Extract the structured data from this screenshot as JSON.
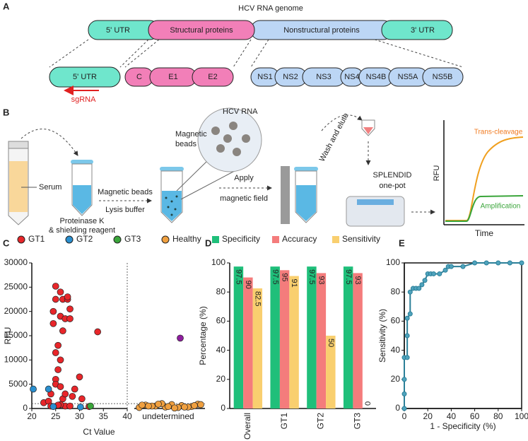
{
  "panel_labels": [
    "A",
    "B",
    "C",
    "D",
    "E"
  ],
  "genome": {
    "title": "HCV RNA genome",
    "top": [
      "5' UTR",
      "Structural proteins",
      "Nonstructural proteins",
      "3' UTR"
    ],
    "bottom": [
      "5' UTR",
      "C",
      "E1",
      "E2",
      "NS1",
      "NS2",
      "NS3",
      "NS4",
      "NS4B",
      "NS5A",
      "NS5B"
    ],
    "guide": "sgRNA"
  },
  "workflow": {
    "serum": "Serum",
    "proteinase": [
      "Proteinase K",
      "& shielding reagent"
    ],
    "beads_step": [
      "Magnetic beads",
      "Lysis buffer"
    ],
    "zoom": [
      "HCV RNA",
      "Magnetic",
      "beads"
    ],
    "apply": [
      "Apply",
      "magnetic field"
    ],
    "wash": "Wash and elute",
    "device": [
      "SPLENDID",
      "one-pot"
    ],
    "mini_chart": {
      "y_label": "RFU",
      "x_label": "Time",
      "curves": [
        "Trans-cleavage",
        "Amplification"
      ]
    }
  },
  "chart_data": [
    {
      "type": "scatter",
      "x_label": "Ct Value",
      "y_label": "RFU",
      "x_undetermined_label": "undetermined",
      "xlim": [
        20,
        40
      ],
      "xticks": [
        20,
        25,
        30,
        35,
        40
      ],
      "ylim": [
        0,
        30000
      ],
      "yticks": [
        0,
        5000,
        10000,
        15000,
        20000,
        25000,
        30000
      ],
      "hline": 1000,
      "series": [
        {
          "name": "GT1",
          "color": "#e8262a",
          "x": [
            22.5,
            23.5,
            24,
            24.5,
            24.5,
            25,
            25,
            25,
            25.5,
            25.5,
            25,
            25,
            26,
            26.5,
            26,
            26.5,
            26,
            26,
            26.5,
            27,
            27,
            27.5,
            27.5,
            28,
            28,
            27,
            26,
            24,
            28.5,
            29,
            30,
            30.5,
            32,
            33.8,
            25.5,
            28
          ],
          "values": [
            1200,
            1500,
            3000,
            17500,
            20000,
            25200,
            22500,
            11500,
            13000,
            8000,
            6000,
            5000,
            24000,
            22500,
            19000,
            16000,
            10000,
            4500,
            2000,
            3000,
            18500,
            22500,
            23000,
            20500,
            18500,
            500,
            800,
            500,
            2500,
            4000,
            6500,
            2000,
            400,
            15800,
            700,
            500
          ]
        },
        {
          "name": "GT2",
          "color": "#2a8fcf",
          "x": [
            20.3,
            23.5,
            24.5,
            30.2
          ],
          "values": [
            4000,
            4000,
            400,
            300
          ]
        },
        {
          "name": "GT3",
          "color": "#3aa53a",
          "x": [
            32.3
          ],
          "values": [
            500
          ]
        },
        {
          "name": "Healthy",
          "color": "#f0a040",
          "x": [
            null,
            null,
            null,
            null,
            null,
            null,
            null,
            null,
            null,
            null,
            null,
            null,
            null,
            null,
            null,
            null,
            null,
            null,
            null,
            null
          ],
          "values": [
            200,
            300,
            400,
            500,
            600,
            700,
            800,
            900,
            1000,
            300,
            500,
            200,
            700,
            400,
            600,
            900,
            300,
            500,
            100,
            800
          ]
        },
        {
          "color": "#8e1d9e",
          "x": [
            null
          ],
          "values": [
            14500
          ]
        }
      ]
    },
    {
      "type": "bar",
      "y_label": "Percentage (%)",
      "categories": [
        "Overall",
        "GT1",
        "GT2",
        "GT3"
      ],
      "ylim": [
        0,
        100
      ],
      "yticks": [
        0,
        20,
        40,
        60,
        80,
        100
      ],
      "series": [
        {
          "name": "Specificity",
          "color": "#1fbf7a",
          "values": [
            97.5,
            97.5,
            97.5,
            97.5
          ]
        },
        {
          "name": "Accuracy",
          "color": "#f47c7c",
          "values": [
            90,
            95,
            93,
            93
          ]
        },
        {
          "name": "Sensitivity",
          "color": "#f9cf6f",
          "values": [
            82.5,
            91,
            50,
            0
          ]
        }
      ]
    },
    {
      "type": "line",
      "x_label": "1 - Specificity (%)",
      "y_label": "Sensitivity (%)",
      "xlim": [
        0,
        100
      ],
      "xticks": [
        0,
        20,
        40,
        60,
        80,
        100
      ],
      "ylim": [
        0,
        100
      ],
      "yticks": [
        0,
        20,
        40,
        60,
        80,
        100
      ],
      "series": [
        {
          "color": "#2b7f98",
          "x": [
            0,
            0,
            0,
            0,
            2.5,
            2.5,
            2.5,
            5,
            5,
            7.5,
            10,
            12.5,
            15,
            17.5,
            20,
            22.5,
            25,
            30,
            35,
            37.5,
            40,
            50,
            60,
            70,
            80,
            90,
            100
          ],
          "values": [
            0,
            10,
            20,
            35,
            35,
            50,
            62,
            65,
            80,
            82.5,
            82.5,
            82.5,
            85,
            88,
            92.5,
            92.5,
            92.5,
            92.5,
            95,
            97.5,
            97.5,
            97.5,
            100,
            100,
            100,
            100,
            100
          ]
        }
      ]
    }
  ]
}
